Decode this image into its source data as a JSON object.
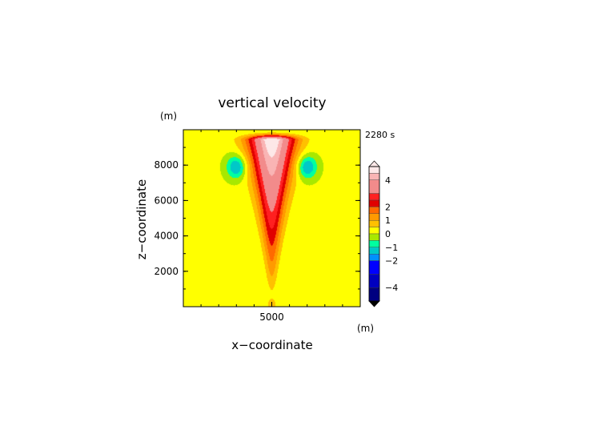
{
  "chart_data": {
    "type": "heatmap",
    "title": "vertical velocity",
    "xlabel": "x−coordinate",
    "ylabel": "z−coordinate",
    "x_unit": "(m)",
    "y_unit": "(m)",
    "time_label": "2280 s",
    "xlim": [
      0,
      10000
    ],
    "ylim": [
      0,
      10000
    ],
    "x_ticks": [
      {
        "value": 5000,
        "label": "5000"
      }
    ],
    "y_ticks": [
      {
        "value": 2000,
        "label": "2000"
      },
      {
        "value": 4000,
        "label": "4000"
      },
      {
        "value": 6000,
        "label": "6000"
      },
      {
        "value": 8000,
        "label": "8000"
      }
    ],
    "colorbar": {
      "min": -5,
      "max": 5,
      "ticks": [
        {
          "value": 4,
          "label": "4"
        },
        {
          "value": 2,
          "label": "2"
        },
        {
          "value": 1,
          "label": "1"
        },
        {
          "value": 0,
          "label": "0"
        },
        {
          "value": -1,
          "label": "−1"
        },
        {
          "value": -2,
          "label": "−2"
        },
        {
          "value": -4,
          "label": "−4"
        }
      ],
      "levels": [
        {
          "from": 4.5,
          "to": 5.0,
          "color": "#fde8e8"
        },
        {
          "from": 4.0,
          "to": 4.5,
          "color": "#f9b4b4"
        },
        {
          "from": 3.0,
          "to": 4.0,
          "color": "#f28b8b"
        },
        {
          "from": 2.5,
          "to": 3.0,
          "color": "#ff2020"
        },
        {
          "from": 2.0,
          "to": 2.5,
          "color": "#e00000"
        },
        {
          "from": 1.5,
          "to": 2.0,
          "color": "#ff6a00"
        },
        {
          "from": 1.0,
          "to": 1.5,
          "color": "#ff9a00"
        },
        {
          "from": 0.5,
          "to": 1.0,
          "color": "#ffc000"
        },
        {
          "from": 0.0,
          "to": 0.5,
          "color": "#ffff00"
        },
        {
          "from": -0.5,
          "to": 0.0,
          "color": "#a8e800"
        },
        {
          "from": -1.0,
          "to": -0.5,
          "color": "#00ffa0"
        },
        {
          "from": -1.5,
          "to": -1.0,
          "color": "#00c8c8"
        },
        {
          "from": -2.0,
          "to": -1.5,
          "color": "#0090ff"
        },
        {
          "from": -3.0,
          "to": -2.0,
          "color": "#0000ff"
        },
        {
          "from": -4.0,
          "to": -3.0,
          "color": "#0000c0"
        },
        {
          "from": -5.0,
          "to": -4.0,
          "color": "#000080"
        }
      ]
    },
    "field": {
      "background": 0.1,
      "features": [
        {
          "kind": "updraft_core",
          "x": 5000,
          "z_top": 9400,
          "z_bottom": 500,
          "peak": 5.0
        },
        {
          "kind": "downdraft",
          "x": 3000,
          "z": 7900,
          "min": -1.7
        },
        {
          "kind": "downdraft",
          "x": 7000,
          "z": 7900,
          "min": -1.7
        }
      ]
    }
  }
}
